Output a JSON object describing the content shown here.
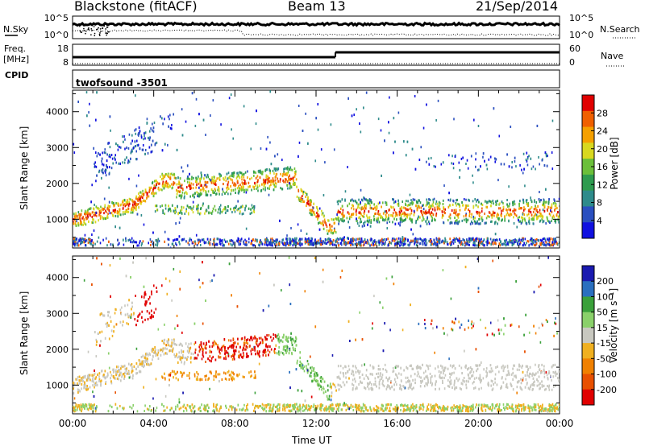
{
  "header": {
    "radar": "Blackstone (fitACF)",
    "beam": "Beam 13",
    "date": "21/Sep/2014"
  },
  "status_panels": {
    "nsky_label": "N.Sky",
    "nsearch_label": "N.Search",
    "noise_ticks_left": [
      "10^5",
      "10^0"
    ],
    "noise_ticks_right": [
      "10^5",
      "10^0"
    ],
    "freq_label": "Freq.",
    "freq_unit": "[MHz]",
    "freq_ticks": [
      "18",
      "8"
    ],
    "nave_label": "Nave",
    "nave_ticks": [
      "60",
      "0"
    ],
    "cpid_label": "CPID",
    "cpid_value": "twofsound -3501"
  },
  "chart_data": [
    {
      "type": "heatmap",
      "name_in_figure": "power",
      "ylabel": "Slant Range [km]",
      "yticks": [
        1000,
        2000,
        3000,
        4000
      ],
      "ylim": [
        200,
        4600
      ],
      "xlim_hours": [
        0,
        24
      ],
      "colorbar": {
        "label": "Power [dB]",
        "ticks": [
          4,
          8,
          12,
          16,
          20,
          24,
          28
        ],
        "range": [
          0,
          32
        ],
        "colors": [
          "#1010e0",
          "#2a4fbf",
          "#2e8b8b",
          "#2e9b4f",
          "#6bbf3a",
          "#d8d820",
          "#f5a000",
          "#f06000",
          "#e00000"
        ]
      }
    },
    {
      "type": "heatmap",
      "name_in_figure": "velocity",
      "ylabel": "Slant Range [km]",
      "yticks": [
        1000,
        2000,
        3000,
        4000
      ],
      "ylim": [
        200,
        4600
      ],
      "xlim_hours": [
        0,
        24
      ],
      "xlabel": "Time UT",
      "xticks": [
        "00:00",
        "04:00",
        "08:00",
        "12:00",
        "16:00",
        "20:00",
        "00:00"
      ],
      "colorbar": {
        "label": "Velocity [m s⁻¹]",
        "ticks": [
          200,
          100,
          50,
          15,
          -15,
          -50,
          -100,
          -200
        ],
        "colors": [
          "#1a1ab0",
          "#2a6fbf",
          "#3aa03a",
          "#8ad06a",
          "#c8c8c0",
          "#f0b020",
          "#f08000",
          "#e85000",
          "#e00000"
        ]
      }
    }
  ]
}
